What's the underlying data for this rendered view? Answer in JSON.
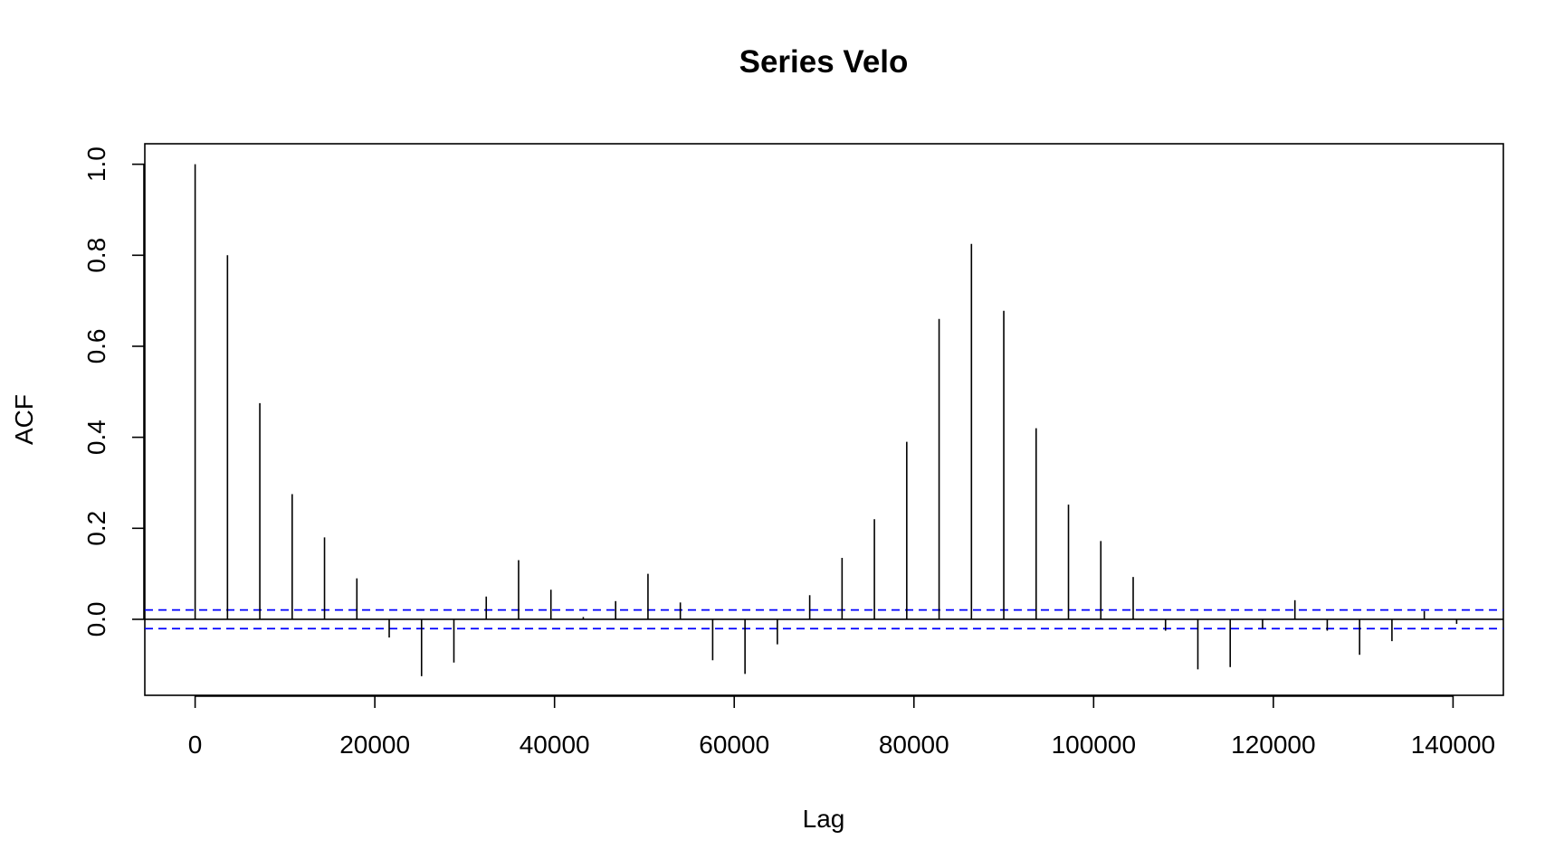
{
  "chart_data": {
    "type": "bar",
    "title": "Series  Velo",
    "xlabel": "Lag",
    "ylabel": "ACF",
    "xlim": [
      -5600,
      145600
    ],
    "ylim": [
      -0.167,
      1.045
    ],
    "x_ticks": [
      0,
      20000,
      40000,
      60000,
      80000,
      100000,
      120000,
      140000
    ],
    "x_tick_labels": [
      "0",
      "20000",
      "40000",
      "60000",
      "80000",
      "100000",
      "120000",
      "140000"
    ],
    "y_ticks": [
      0.0,
      0.2,
      0.4,
      0.6,
      0.8,
      1.0
    ],
    "y_tick_labels": [
      "0.0",
      "0.2",
      "0.4",
      "0.6",
      "0.8",
      "1.0"
    ],
    "grid": false,
    "lag_step": 3600,
    "x": [
      0,
      3600,
      7200,
      10800,
      14400,
      18000,
      21600,
      25200,
      28800,
      32400,
      36000,
      39600,
      43200,
      46800,
      50400,
      54000,
      57600,
      61200,
      64800,
      68400,
      72000,
      75600,
      79200,
      82800,
      86400,
      90000,
      93600,
      97200,
      100800,
      104400,
      108000,
      111600,
      115200,
      118800,
      122400,
      126000,
      129600,
      133200,
      136800,
      140400
    ],
    "values": [
      1.0,
      0.8,
      0.475,
      0.275,
      0.18,
      0.09,
      -0.04,
      -0.125,
      -0.095,
      0.05,
      0.13,
      0.065,
      0.005,
      0.04,
      0.1,
      0.037,
      -0.09,
      -0.12,
      -0.055,
      0.053,
      0.135,
      0.22,
      0.39,
      0.66,
      0.825,
      0.678,
      0.42,
      0.252,
      0.172,
      0.093,
      -0.025,
      -0.11,
      -0.105,
      -0.02,
      0.042,
      -0.025,
      -0.078,
      -0.048,
      0.018,
      -0.01
    ],
    "confidence_band": 0.0205,
    "colors": {
      "bars": "#000000",
      "zero_line": "#000000",
      "confidence_band": "#0000ff"
    }
  }
}
